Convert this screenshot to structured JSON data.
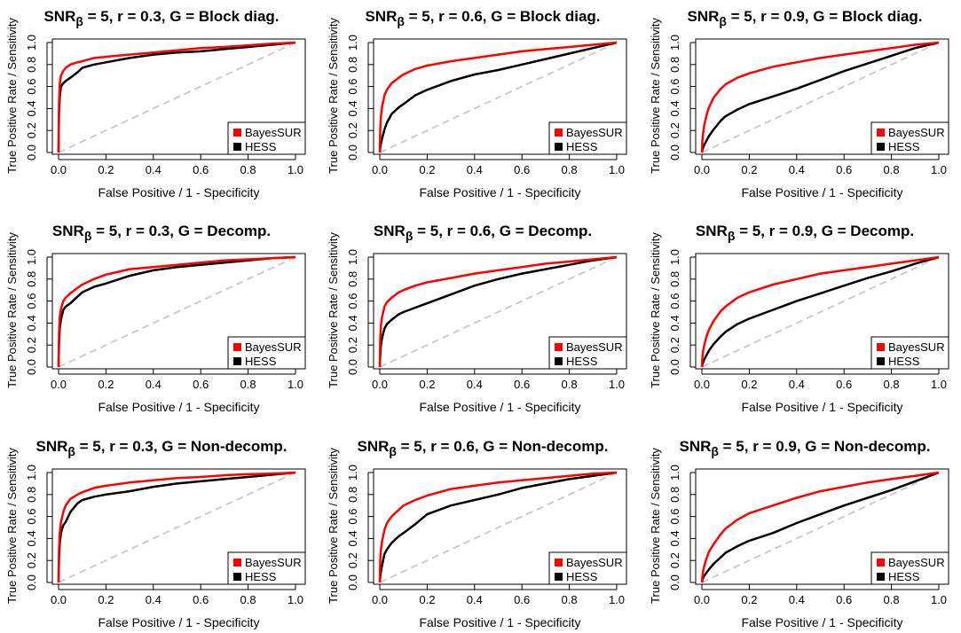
{
  "colors": {
    "bayessur": "#ff0000",
    "hess": "#000000",
    "diagonal": "#cccccc",
    "axis": "#000000"
  },
  "shared": {
    "xlabel": "False Positive / 1 - Specificity",
    "ylabel": "True Positive Rate / Sensitivity",
    "x_ticks": [
      "0.0",
      "0.2",
      "0.4",
      "0.6",
      "0.8",
      "1.0"
    ],
    "y_ticks": [
      "0.0",
      "0.2",
      "0.4",
      "0.6",
      "0.8",
      "1.0"
    ],
    "legend": [
      "BayesSUR",
      "HESS"
    ],
    "title_prefix": "SNR",
    "title_sub": "β"
  },
  "chart_data": [
    {
      "type": "line",
      "title": " = 5, r = 0.3, G = Block diag.",
      "r": "0.3",
      "g": "Block diag.",
      "xlim": [
        0,
        1
      ],
      "ylim": [
        0,
        1
      ],
      "legend_position": "bottom-right",
      "diagonal": true,
      "series": [
        {
          "name": "BayesSUR",
          "x": [
            0,
            0.002,
            0.005,
            0.01,
            0.02,
            0.03,
            0.05,
            0.08,
            0.1,
            0.15,
            0.2,
            0.3,
            0.4,
            0.5,
            0.6,
            0.7,
            0.8,
            0.9,
            1.0
          ],
          "y": [
            0,
            0.45,
            0.62,
            0.7,
            0.74,
            0.77,
            0.8,
            0.82,
            0.83,
            0.86,
            0.87,
            0.89,
            0.91,
            0.93,
            0.95,
            0.96,
            0.975,
            0.99,
            1.0
          ]
        },
        {
          "name": "HESS",
          "x": [
            0,
            0.002,
            0.005,
            0.01,
            0.02,
            0.03,
            0.05,
            0.08,
            0.1,
            0.15,
            0.2,
            0.3,
            0.4,
            0.5,
            0.6,
            0.7,
            0.8,
            0.9,
            1.0
          ],
          "y": [
            0,
            0.35,
            0.5,
            0.6,
            0.63,
            0.65,
            0.68,
            0.73,
            0.77,
            0.8,
            0.82,
            0.86,
            0.89,
            0.91,
            0.92,
            0.94,
            0.96,
            0.98,
            1.0
          ]
        }
      ]
    },
    {
      "type": "line",
      "title": " = 5, r = 0.6, G = Block diag.",
      "r": "0.6",
      "g": "Block diag.",
      "xlim": [
        0,
        1
      ],
      "ylim": [
        0,
        1
      ],
      "legend_position": "bottom-right",
      "diagonal": true,
      "series": [
        {
          "name": "BayesSUR",
          "x": [
            0,
            0.002,
            0.005,
            0.01,
            0.02,
            0.03,
            0.05,
            0.08,
            0.1,
            0.15,
            0.2,
            0.3,
            0.4,
            0.5,
            0.6,
            0.7,
            0.8,
            0.9,
            1.0
          ],
          "y": [
            0,
            0.2,
            0.33,
            0.42,
            0.52,
            0.57,
            0.63,
            0.68,
            0.71,
            0.76,
            0.79,
            0.83,
            0.86,
            0.89,
            0.92,
            0.94,
            0.96,
            0.98,
            1.0
          ]
        },
        {
          "name": "HESS",
          "x": [
            0,
            0.002,
            0.005,
            0.01,
            0.02,
            0.03,
            0.05,
            0.08,
            0.1,
            0.15,
            0.2,
            0.3,
            0.4,
            0.5,
            0.6,
            0.7,
            0.8,
            0.9,
            1.0
          ],
          "y": [
            0,
            0.04,
            0.08,
            0.13,
            0.21,
            0.27,
            0.35,
            0.41,
            0.44,
            0.52,
            0.57,
            0.65,
            0.71,
            0.75,
            0.8,
            0.85,
            0.9,
            0.95,
            1.0
          ]
        }
      ]
    },
    {
      "type": "line",
      "title": " = 5, r = 0.9, G = Block diag.",
      "r": "0.9",
      "g": "Block diag.",
      "xlim": [
        0,
        1
      ],
      "ylim": [
        0,
        1
      ],
      "legend_position": "bottom-right",
      "diagonal": true,
      "series": [
        {
          "name": "BayesSUR",
          "x": [
            0,
            0.002,
            0.005,
            0.01,
            0.02,
            0.03,
            0.05,
            0.08,
            0.1,
            0.15,
            0.2,
            0.3,
            0.4,
            0.5,
            0.6,
            0.7,
            0.8,
            0.9,
            1.0
          ],
          "y": [
            0,
            0.1,
            0.17,
            0.25,
            0.34,
            0.41,
            0.5,
            0.58,
            0.62,
            0.68,
            0.72,
            0.78,
            0.82,
            0.86,
            0.89,
            0.92,
            0.95,
            0.98,
            1.0
          ]
        },
        {
          "name": "HESS",
          "x": [
            0,
            0.002,
            0.005,
            0.01,
            0.02,
            0.03,
            0.05,
            0.08,
            0.1,
            0.15,
            0.2,
            0.3,
            0.4,
            0.5,
            0.6,
            0.7,
            0.8,
            0.9,
            1.0
          ],
          "y": [
            0,
            0.02,
            0.04,
            0.07,
            0.11,
            0.15,
            0.21,
            0.29,
            0.33,
            0.39,
            0.44,
            0.51,
            0.58,
            0.66,
            0.74,
            0.81,
            0.88,
            0.95,
            1.0
          ]
        }
      ]
    },
    {
      "type": "line",
      "title": " = 5, r = 0.3, G = Decomp.",
      "r": "0.3",
      "g": "Decomp.",
      "xlim": [
        0,
        1
      ],
      "ylim": [
        0,
        1
      ],
      "legend_position": "bottom-right",
      "diagonal": true,
      "series": [
        {
          "name": "BayesSUR",
          "x": [
            0,
            0.002,
            0.005,
            0.01,
            0.02,
            0.03,
            0.05,
            0.08,
            0.1,
            0.15,
            0.2,
            0.3,
            0.4,
            0.5,
            0.6,
            0.7,
            0.8,
            0.9,
            1.0
          ],
          "y": [
            0,
            0.3,
            0.45,
            0.53,
            0.6,
            0.63,
            0.67,
            0.72,
            0.75,
            0.8,
            0.84,
            0.89,
            0.91,
            0.93,
            0.95,
            0.97,
            0.98,
            0.99,
            1.0
          ]
        },
        {
          "name": "HESS",
          "x": [
            0,
            0.002,
            0.005,
            0.01,
            0.02,
            0.03,
            0.05,
            0.08,
            0.1,
            0.15,
            0.2,
            0.3,
            0.4,
            0.5,
            0.6,
            0.7,
            0.8,
            0.9,
            1.0
          ],
          "y": [
            0,
            0.2,
            0.35,
            0.43,
            0.52,
            0.55,
            0.58,
            0.64,
            0.68,
            0.73,
            0.76,
            0.83,
            0.88,
            0.91,
            0.93,
            0.95,
            0.97,
            0.99,
            1.0
          ]
        }
      ]
    },
    {
      "type": "line",
      "title": " = 5, r = 0.6, G = Decomp.",
      "r": "0.6",
      "g": "Decomp.",
      "xlim": [
        0,
        1
      ],
      "ylim": [
        0,
        1
      ],
      "legend_position": "bottom-right",
      "diagonal": true,
      "series": [
        {
          "name": "BayesSUR",
          "x": [
            0,
            0.002,
            0.005,
            0.01,
            0.02,
            0.03,
            0.05,
            0.08,
            0.1,
            0.15,
            0.2,
            0.3,
            0.4,
            0.5,
            0.6,
            0.7,
            0.8,
            0.9,
            1.0
          ],
          "y": [
            0,
            0.25,
            0.38,
            0.46,
            0.55,
            0.59,
            0.63,
            0.68,
            0.7,
            0.74,
            0.77,
            0.81,
            0.85,
            0.88,
            0.91,
            0.94,
            0.96,
            0.98,
            1.0
          ]
        },
        {
          "name": "HESS",
          "x": [
            0,
            0.002,
            0.005,
            0.01,
            0.02,
            0.03,
            0.05,
            0.08,
            0.1,
            0.15,
            0.2,
            0.3,
            0.4,
            0.5,
            0.6,
            0.7,
            0.8,
            0.9,
            1.0
          ],
          "y": [
            0,
            0.1,
            0.2,
            0.27,
            0.35,
            0.39,
            0.43,
            0.48,
            0.5,
            0.54,
            0.58,
            0.66,
            0.74,
            0.8,
            0.85,
            0.89,
            0.93,
            0.97,
            1.0
          ]
        }
      ]
    },
    {
      "type": "line",
      "title": " = 5, r = 0.9, G = Decomp.",
      "r": "0.9",
      "g": "Decomp.",
      "xlim": [
        0,
        1
      ],
      "ylim": [
        0,
        1
      ],
      "legend_position": "bottom-right",
      "diagonal": true,
      "series": [
        {
          "name": "BayesSUR",
          "x": [
            0,
            0.002,
            0.005,
            0.01,
            0.02,
            0.03,
            0.05,
            0.08,
            0.1,
            0.15,
            0.2,
            0.3,
            0.4,
            0.5,
            0.6,
            0.7,
            0.8,
            0.9,
            1.0
          ],
          "y": [
            0,
            0.08,
            0.14,
            0.2,
            0.28,
            0.34,
            0.42,
            0.51,
            0.55,
            0.63,
            0.68,
            0.75,
            0.8,
            0.85,
            0.88,
            0.91,
            0.94,
            0.97,
            1.0
          ]
        },
        {
          "name": "HESS",
          "x": [
            0,
            0.002,
            0.005,
            0.01,
            0.02,
            0.03,
            0.05,
            0.08,
            0.1,
            0.15,
            0.2,
            0.3,
            0.4,
            0.5,
            0.6,
            0.7,
            0.8,
            0.9,
            1.0
          ],
          "y": [
            0,
            0.02,
            0.04,
            0.07,
            0.11,
            0.15,
            0.21,
            0.28,
            0.32,
            0.39,
            0.44,
            0.52,
            0.6,
            0.67,
            0.74,
            0.81,
            0.87,
            0.94,
            1.0
          ]
        }
      ]
    },
    {
      "type": "line",
      "title": " = 5, r = 0.3, G = Non-decomp.",
      "r": "0.3",
      "g": "Non-decomp.",
      "xlim": [
        0,
        1
      ],
      "ylim": [
        0,
        1
      ],
      "legend_position": "bottom-right",
      "diagonal": true,
      "series": [
        {
          "name": "BayesSUR",
          "x": [
            0,
            0.002,
            0.005,
            0.01,
            0.02,
            0.03,
            0.05,
            0.08,
            0.1,
            0.15,
            0.2,
            0.3,
            0.4,
            0.5,
            0.6,
            0.7,
            0.8,
            0.9,
            1.0
          ],
          "y": [
            0,
            0.3,
            0.45,
            0.55,
            0.64,
            0.7,
            0.76,
            0.8,
            0.82,
            0.86,
            0.88,
            0.91,
            0.93,
            0.95,
            0.96,
            0.975,
            0.985,
            0.99,
            1.0
          ]
        },
        {
          "name": "HESS",
          "x": [
            0,
            0.002,
            0.005,
            0.01,
            0.02,
            0.03,
            0.05,
            0.08,
            0.1,
            0.15,
            0.2,
            0.3,
            0.4,
            0.5,
            0.6,
            0.7,
            0.8,
            0.9,
            1.0
          ],
          "y": [
            0,
            0.2,
            0.35,
            0.45,
            0.52,
            0.55,
            0.64,
            0.72,
            0.75,
            0.78,
            0.8,
            0.83,
            0.87,
            0.9,
            0.92,
            0.94,
            0.96,
            0.98,
            1.0
          ]
        }
      ]
    },
    {
      "type": "line",
      "title": " = 5, r = 0.6, G = Non-decomp.",
      "r": "0.6",
      "g": "Non-decomp.",
      "xlim": [
        0,
        1
      ],
      "ylim": [
        0,
        1
      ],
      "legend_position": "bottom-right",
      "diagonal": true,
      "series": [
        {
          "name": "BayesSUR",
          "x": [
            0,
            0.002,
            0.005,
            0.01,
            0.02,
            0.03,
            0.05,
            0.08,
            0.1,
            0.15,
            0.2,
            0.3,
            0.4,
            0.5,
            0.6,
            0.7,
            0.8,
            0.9,
            1.0
          ],
          "y": [
            0,
            0.2,
            0.3,
            0.38,
            0.48,
            0.54,
            0.6,
            0.66,
            0.7,
            0.75,
            0.79,
            0.85,
            0.88,
            0.91,
            0.93,
            0.95,
            0.97,
            0.99,
            1.0
          ]
        },
        {
          "name": "HESS",
          "x": [
            0,
            0.002,
            0.005,
            0.01,
            0.02,
            0.03,
            0.05,
            0.08,
            0.1,
            0.15,
            0.2,
            0.3,
            0.4,
            0.5,
            0.6,
            0.7,
            0.8,
            0.9,
            1.0
          ],
          "y": [
            0,
            0.05,
            0.1,
            0.16,
            0.26,
            0.3,
            0.36,
            0.42,
            0.45,
            0.53,
            0.62,
            0.7,
            0.75,
            0.8,
            0.86,
            0.9,
            0.94,
            0.97,
            1.0
          ]
        }
      ]
    },
    {
      "type": "line",
      "title": " = 5, r = 0.9, G = Non-decomp.",
      "r": "0.9",
      "g": "Non-decomp.",
      "xlim": [
        0,
        1
      ],
      "ylim": [
        0,
        1
      ],
      "legend_position": "bottom-right",
      "diagonal": true,
      "series": [
        {
          "name": "BayesSUR",
          "x": [
            0,
            0.002,
            0.005,
            0.01,
            0.02,
            0.03,
            0.05,
            0.08,
            0.1,
            0.15,
            0.2,
            0.3,
            0.4,
            0.5,
            0.6,
            0.7,
            0.8,
            0.9,
            1.0
          ],
          "y": [
            0,
            0.05,
            0.1,
            0.15,
            0.22,
            0.28,
            0.35,
            0.44,
            0.49,
            0.57,
            0.63,
            0.7,
            0.77,
            0.83,
            0.87,
            0.91,
            0.94,
            0.97,
            1.0
          ]
        },
        {
          "name": "HESS",
          "x": [
            0,
            0.002,
            0.005,
            0.01,
            0.02,
            0.03,
            0.05,
            0.08,
            0.1,
            0.15,
            0.2,
            0.3,
            0.4,
            0.5,
            0.6,
            0.7,
            0.8,
            0.9,
            1.0
          ],
          "y": [
            0,
            0.02,
            0.04,
            0.06,
            0.09,
            0.12,
            0.17,
            0.23,
            0.27,
            0.33,
            0.38,
            0.45,
            0.54,
            0.62,
            0.7,
            0.77,
            0.84,
            0.92,
            1.0
          ]
        }
      ]
    }
  ]
}
